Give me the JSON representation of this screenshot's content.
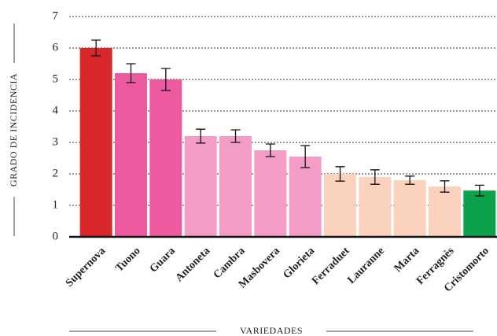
{
  "chart_data": {
    "type": "bar",
    "categories": [
      "Supernova",
      "Tuono",
      "Guara",
      "Antoneta",
      "Cambra",
      "Masbovera",
      "Glorieta",
      "Ferraduet",
      "Lauranne",
      "Marta",
      "Ferragnès",
      "Cristomorto"
    ],
    "values": [
      6.0,
      5.2,
      5.0,
      3.2,
      3.2,
      2.75,
      2.55,
      2.0,
      1.9,
      1.8,
      1.6,
      1.47
    ],
    "errors": [
      0.25,
      0.3,
      0.35,
      0.22,
      0.2,
      0.2,
      0.35,
      0.23,
      0.23,
      0.13,
      0.18,
      0.17
    ],
    "colors": [
      "#d9262b",
      "#ee5aa0",
      "#ee5aa0",
      "#f39cc6",
      "#f39cc6",
      "#f39cc6",
      "#f39cc6",
      "#fbd2bd",
      "#fbd2bd",
      "#fbd2bd",
      "#fbd2bd",
      "#0da14b"
    ],
    "xlabel": "VARIEDADES",
    "ylabel": "GRADO DE INCIDENCIA",
    "ylim": [
      0,
      7
    ],
    "yticks": [
      0,
      1,
      2,
      3,
      4,
      5,
      6,
      7
    ],
    "grid": true
  }
}
